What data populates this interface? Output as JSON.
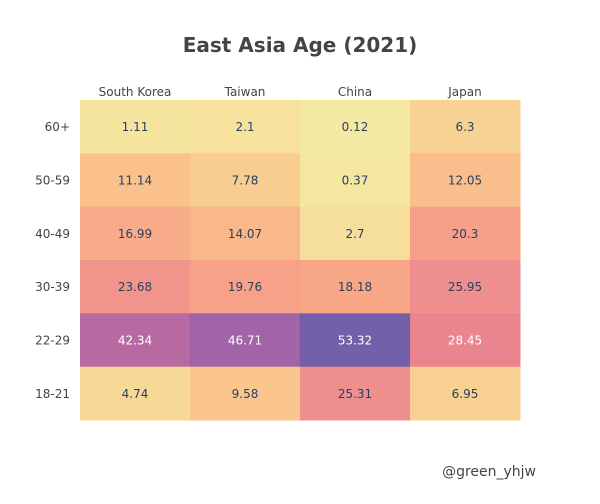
{
  "chart_data": {
    "type": "heatmap",
    "title": "East Asia Age (2021)",
    "columns": [
      "South Korea",
      "Taiwan",
      "China",
      "Japan"
    ],
    "rows": [
      "60+",
      "50-59",
      "40-49",
      "30-39",
      "22-29",
      "18-21"
    ],
    "values": [
      [
        1.11,
        2.1,
        0.12,
        6.3
      ],
      [
        11.14,
        7.78,
        0.37,
        12.05
      ],
      [
        16.99,
        14.07,
        2.7,
        20.3
      ],
      [
        23.68,
        19.76,
        18.18,
        25.95
      ],
      [
        42.34,
        46.71,
        53.32,
        28.45
      ],
      [
        4.74,
        9.58,
        25.31,
        6.95
      ]
    ],
    "labels": [
      [
        "1.11",
        "2.1",
        "0.12",
        "6.3"
      ],
      [
        "11.14",
        "7.78",
        "0.37",
        "12.05"
      ],
      [
        "16.99",
        "14.07",
        "2.7",
        "20.3"
      ],
      [
        "23.68",
        "19.76",
        "18.18",
        "25.95"
      ],
      [
        "42.34",
        "46.71",
        "53.32",
        "28.45"
      ],
      [
        "4.74",
        "9.58",
        "25.31",
        "6.95"
      ]
    ],
    "zlim": [
      0,
      55
    ],
    "colorscale": [
      "#f3e79b",
      "#fac484",
      "#f8a07e",
      "#eb7f86",
      "#ce6693",
      "#a059a0",
      "#5c53a5"
    ],
    "light_text_threshold": 28,
    "dark_text_color": "#2a3f5f",
    "light_text_color": "#ffffff"
  },
  "watermark": "@green_yhjw"
}
